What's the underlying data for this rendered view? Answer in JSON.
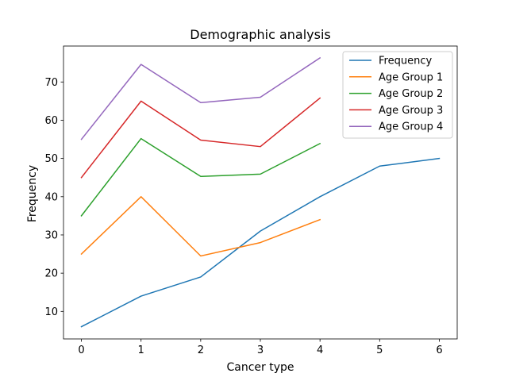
{
  "chart_data": {
    "type": "line",
    "title": "Demographic analysis",
    "xlabel": "Cancer type",
    "ylabel": "Frequency",
    "xlim": [
      -0.3,
      6.3
    ],
    "ylim": [
      2.8,
      79.4
    ],
    "xticks": [
      0,
      1,
      2,
      3,
      4,
      5,
      6
    ],
    "yticks": [
      10,
      20,
      30,
      40,
      50,
      60,
      70
    ],
    "grid": false,
    "legend_position": "top-right",
    "series": [
      {
        "name": "Frequency",
        "color": "#1f77b4",
        "x": [
          0,
          1,
          2,
          3,
          4,
          5,
          6
        ],
        "y": [
          6,
          14,
          19,
          31,
          40,
          48,
          50
        ]
      },
      {
        "name": "Age Group 1",
        "color": "#ff7f0e",
        "x": [
          0,
          1,
          2,
          3,
          4
        ],
        "y": [
          25,
          40,
          24.5,
          28,
          34
        ]
      },
      {
        "name": "Age Group 2",
        "color": "#2ca02c",
        "x": [
          0,
          1,
          2,
          3,
          4
        ],
        "y": [
          35,
          55.2,
          45.3,
          45.9,
          53.9
        ]
      },
      {
        "name": "Age Group 3",
        "color": "#d62728",
        "x": [
          0,
          1,
          2,
          3,
          4
        ],
        "y": [
          45,
          65,
          54.8,
          53.1,
          65.8
        ]
      },
      {
        "name": "Age Group 4",
        "color": "#9467bd",
        "x": [
          0,
          1,
          2,
          3,
          4
        ],
        "y": [
          55,
          74.6,
          64.6,
          66,
          76.3
        ]
      }
    ]
  }
}
